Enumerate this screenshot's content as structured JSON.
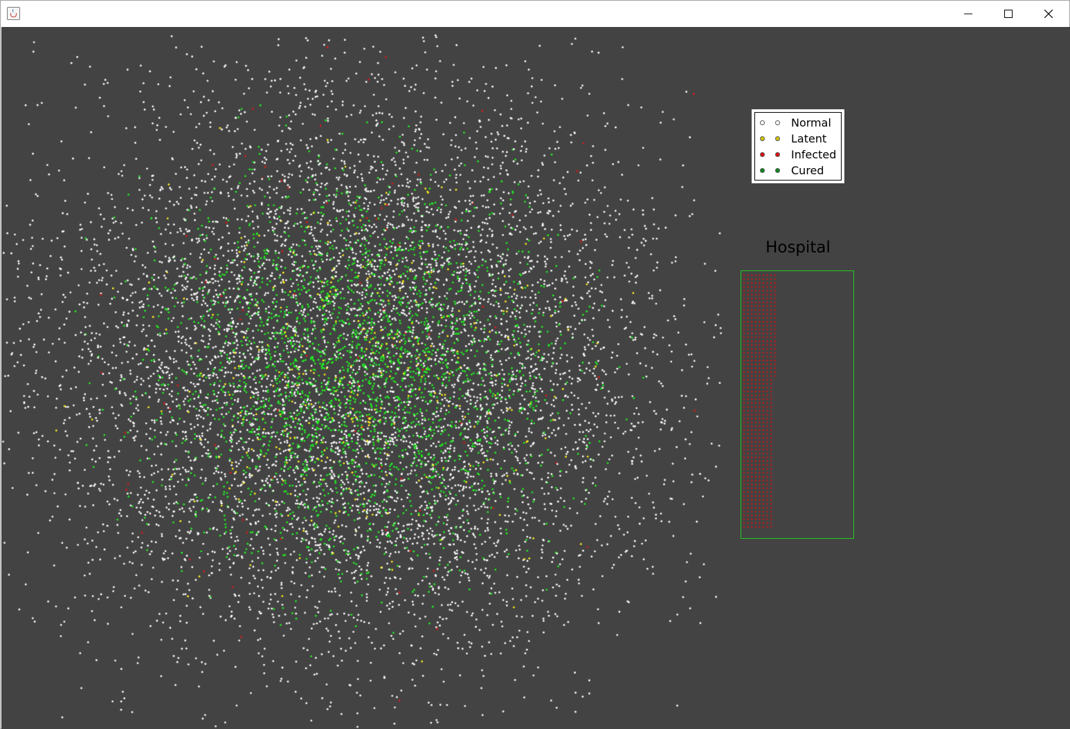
{
  "window": {
    "icon": "java-coffee-icon",
    "controls": {
      "minimize_icon": "minimize-icon",
      "maximize_icon": "maximize-icon",
      "close_icon": "close-icon"
    }
  },
  "canvas": {
    "background": "#434343"
  },
  "legend": {
    "items": [
      {
        "label": "Normal",
        "color": "#ffffff"
      },
      {
        "label": "Latent",
        "color": "#d4c400"
      },
      {
        "label": "Infected",
        "color": "#e01010"
      },
      {
        "label": "Cured",
        "color": "#0a8a1a"
      }
    ]
  },
  "hospital": {
    "title": "Hospital",
    "border_color": "#22cc22",
    "patient_color": "#c81818"
  },
  "population_colors": {
    "normal": "#ffffff",
    "latent": "#ffee22",
    "infected": "#dd1a1a",
    "cured": "#22ee22"
  }
}
